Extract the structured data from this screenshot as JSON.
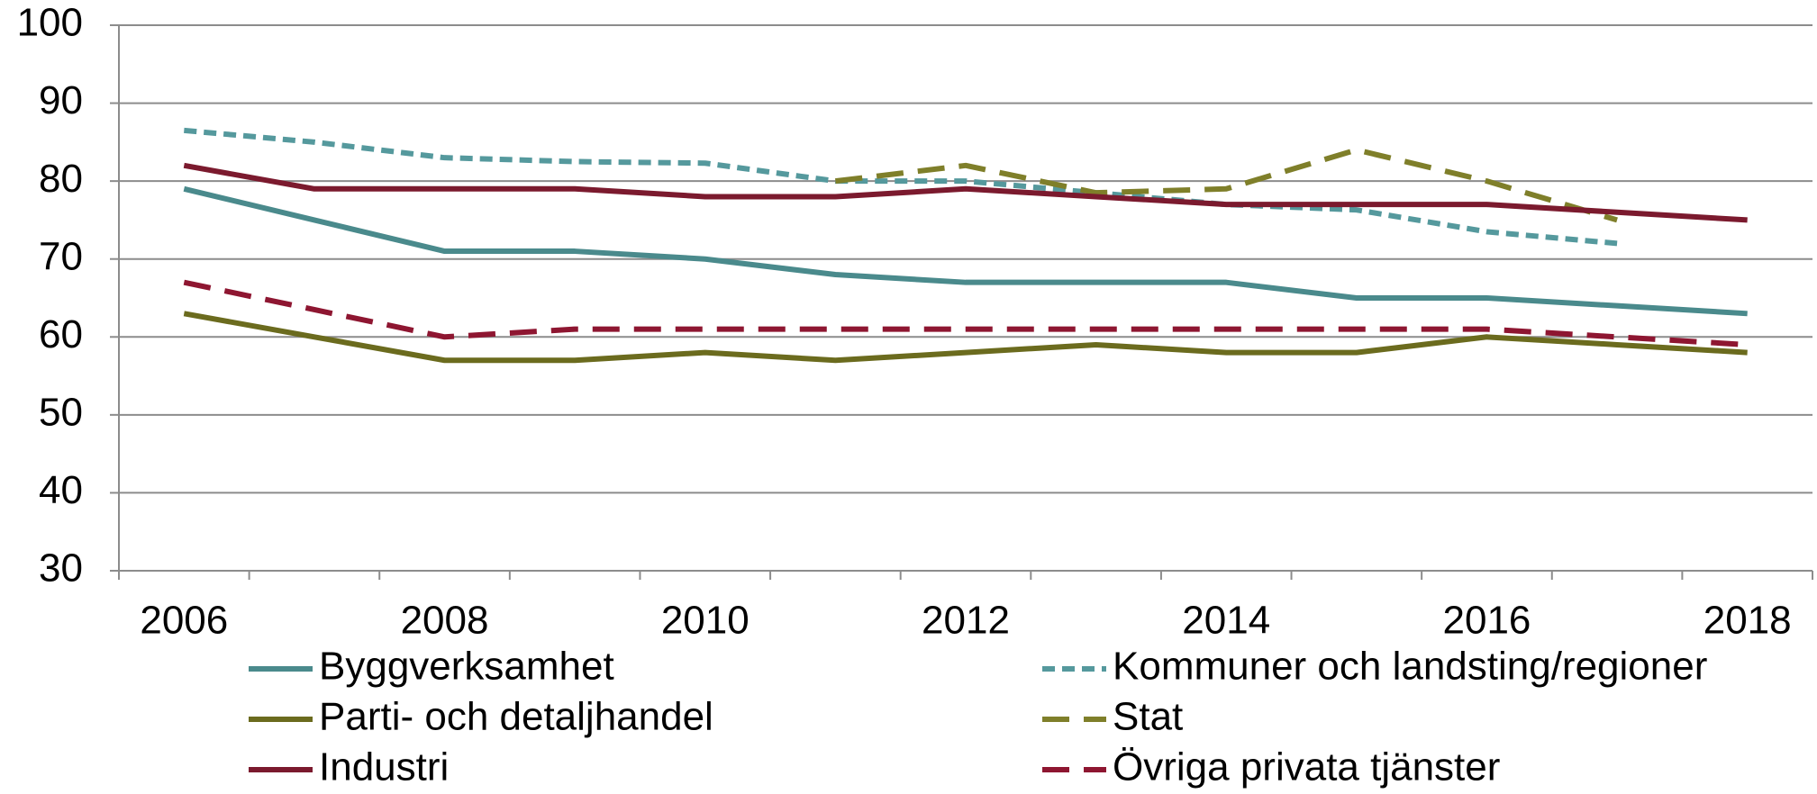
{
  "chart_data": {
    "type": "line",
    "categories": [
      "2006",
      null,
      "2008",
      null,
      "2010",
      null,
      "2012",
      null,
      "2014",
      null,
      "2016",
      null,
      "2018"
    ],
    "ylim": [
      30,
      100
    ],
    "yticks": [
      30,
      40,
      50,
      60,
      70,
      80,
      90,
      100
    ],
    "grid": true,
    "series": [
      {
        "name": "Byggverksamhet",
        "color": "#4a8a8c",
        "style": "solid",
        "values": [
          79,
          75,
          71,
          71,
          70,
          68,
          67,
          67,
          67,
          65,
          65,
          64,
          63
        ]
      },
      {
        "name": "Kommuner och landsting/regioner",
        "color": "#55999d",
        "style": "dotted",
        "values": [
          86.5,
          85,
          83,
          82.5,
          82.3,
          80,
          80,
          78.5,
          77,
          76.3,
          73.5,
          72,
          null
        ]
      },
      {
        "name": "Parti- och detaljhandel",
        "color": "#6b6b1e",
        "style": "solid",
        "values": [
          63,
          60,
          57,
          57,
          58,
          57,
          58,
          59,
          58,
          58,
          60,
          59,
          58
        ]
      },
      {
        "name": "Stat",
        "color": "#7f7f2a",
        "style": "dashed",
        "values": [
          null,
          null,
          null,
          null,
          null,
          80,
          82,
          78.5,
          79,
          84,
          80,
          75,
          null
        ]
      },
      {
        "name": "Industri",
        "color": "#7b1a2e",
        "style": "solid",
        "values": [
          82,
          79,
          79,
          79,
          78,
          78,
          79,
          78,
          77,
          77,
          77,
          76,
          75
        ]
      },
      {
        "name": "Övriga privata tjänster",
        "color": "#8e1631",
        "style": "dashed",
        "values": [
          67,
          63.5,
          60,
          61,
          61,
          61,
          61,
          61,
          61,
          61,
          61,
          60,
          59
        ]
      }
    ]
  }
}
